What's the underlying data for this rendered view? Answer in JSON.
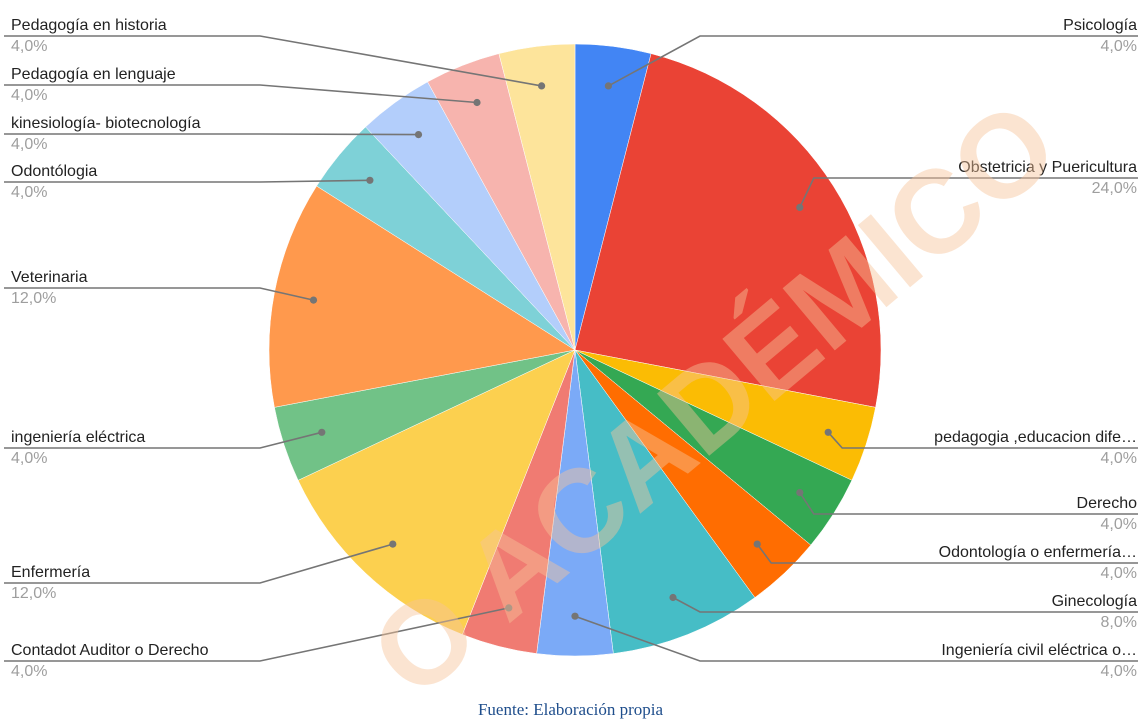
{
  "chart_data": {
    "type": "pie",
    "start": "top",
    "direction": "clockwise",
    "slices": [
      {
        "label": "Psicología",
        "value": 4.0,
        "display": "4,0%",
        "color": "#4285f4"
      },
      {
        "label": "Obstetricia y Puericultura",
        "value": 24.0,
        "display": "24,0%",
        "color": "#ea4335"
      },
      {
        "label": "pedagogia ,educacion dife…",
        "value": 4.0,
        "display": "4,0%",
        "color": "#fbbc04"
      },
      {
        "label": "Derecho",
        "value": 4.0,
        "display": "4,0%",
        "color": "#34a853"
      },
      {
        "label": "Odontología o enfermería…",
        "value": 4.0,
        "display": "4,0%",
        "color": "#ff6d01"
      },
      {
        "label": "Ginecología",
        "value": 8.0,
        "display": "8,0%",
        "color": "#46bdc6"
      },
      {
        "label": "Ingeniería civil eléctrica o…",
        "value": 4.0,
        "display": "4,0%",
        "color": "#7baaf7"
      },
      {
        "label": "Contadot Auditor o Derecho",
        "value": 4.0,
        "display": "4,0%",
        "color": "#f07b72"
      },
      {
        "label": "Enfermería",
        "value": 12.0,
        "display": "12,0%",
        "color": "#fcd04f"
      },
      {
        "label": "ingeniería eléctrica",
        "value": 4.0,
        "display": "4,0%",
        "color": "#71c287"
      },
      {
        "label": "Veterinaria",
        "value": 12.0,
        "display": "12,0%",
        "color": "#ff994d"
      },
      {
        "label": "Odontólogia",
        "value": 4.0,
        "display": "4,0%",
        "color": "#7ed1d7"
      },
      {
        "label": "kinesiología- biotecnología",
        "value": 4.0,
        "display": "4,0%",
        "color": "#b3cefb"
      },
      {
        "label": "Pedagogía en lenguaje",
        "value": 4.0,
        "display": "4,0%",
        "color": "#f7b4ae"
      },
      {
        "label": "Pedagogía en historia",
        "value": 4.0,
        "display": "4,0%",
        "color": "#fde49b"
      }
    ]
  },
  "caption": "Fuente: Elaboración propia",
  "watermark": "O ACADÉMICO"
}
